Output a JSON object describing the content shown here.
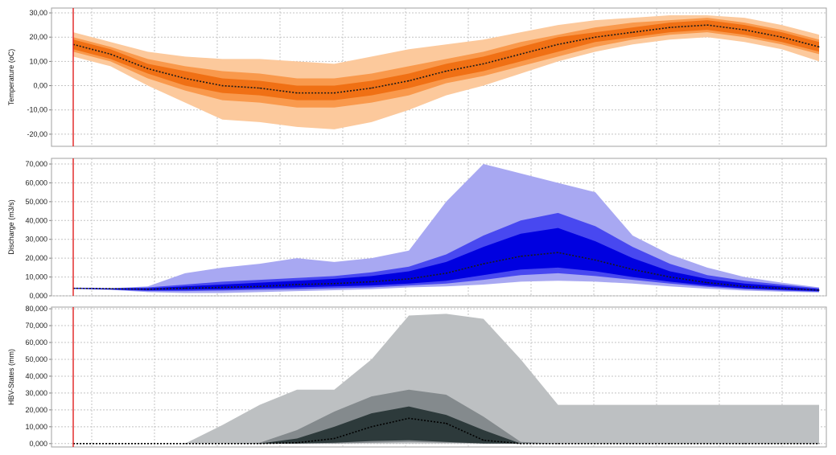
{
  "chart_data": [
    {
      "type": "area",
      "ylabel": "Temperature (oC)",
      "ylim": [
        -25,
        32
      ],
      "yticks": [
        30,
        20,
        10,
        0,
        -10,
        -20
      ],
      "ytick_labels": [
        "30,00",
        "20,00",
        "10,00",
        "0,00",
        "-10,00",
        "-20,00"
      ],
      "grid": true,
      "band_colors": {
        "outer": "#fcc99c",
        "middle": "#f9994c",
        "inner": "#f07014",
        "median": "#1a1a1a"
      },
      "x": [
        0,
        5,
        10,
        15,
        20,
        25,
        30,
        35,
        40,
        45,
        50,
        55,
        60,
        65,
        70,
        75,
        80,
        85,
        90,
        95,
        100
      ],
      "series": [
        {
          "role": "median",
          "values": [
            17,
            13,
            7,
            3,
            0,
            -1,
            -3,
            -3,
            -1,
            2,
            6,
            9,
            13,
            17,
            20,
            22,
            24,
            25,
            23,
            20,
            16
          ]
        },
        {
          "role": "inner_low",
          "values": [
            15,
            11,
            5,
            0,
            -3,
            -4,
            -6,
            -6,
            -4,
            -1,
            3,
            6,
            10,
            14,
            18,
            20,
            22,
            23,
            21,
            18,
            14
          ]
        },
        {
          "role": "inner_high",
          "values": [
            19,
            15,
            9,
            6,
            3,
            2,
            0,
            0,
            2,
            5,
            9,
            12,
            16,
            20,
            22,
            24,
            26,
            27,
            25,
            22,
            18
          ]
        },
        {
          "role": "middle_low",
          "values": [
            14,
            10,
            3,
            -2,
            -6,
            -7,
            -9,
            -9,
            -7,
            -4,
            1,
            4,
            8,
            12,
            16,
            19,
            21,
            22,
            20,
            17,
            13
          ]
        },
        {
          "role": "middle_high",
          "values": [
            20,
            16,
            11,
            8,
            6,
            5,
            3,
            3,
            5,
            8,
            11,
            14,
            18,
            21,
            24,
            26,
            27,
            28,
            26,
            23,
            19
          ]
        },
        {
          "role": "outer_low",
          "values": [
            12,
            8,
            0,
            -7,
            -14,
            -15,
            -17,
            -18,
            -15,
            -10,
            -4,
            0,
            5,
            10,
            14,
            17,
            19,
            20,
            18,
            15,
            10
          ]
        },
        {
          "role": "outer_high",
          "values": [
            22,
            18,
            14,
            12,
            11,
            11,
            10,
            9,
            12,
            15,
            17,
            19,
            22,
            25,
            27,
            28,
            29,
            29,
            28,
            25,
            21
          ]
        }
      ]
    },
    {
      "type": "area",
      "ylabel": "Discharge (m3/s)",
      "ylim": [
        0,
        73000
      ],
      "yticks": [
        70000,
        60000,
        50000,
        40000,
        30000,
        20000,
        10000,
        0
      ],
      "ytick_labels": [
        "70,000",
        "60,000",
        "50,000",
        "40,000",
        "30,000",
        "20,000",
        "10,000",
        "0,000"
      ],
      "grid": true,
      "band_colors": {
        "outer": "#a8a8f2",
        "middle": "#4848f0",
        "inner": "#0000e0",
        "median": "#1a1a1a"
      },
      "x": [
        0,
        5,
        10,
        15,
        20,
        25,
        30,
        35,
        40,
        45,
        50,
        55,
        60,
        65,
        70,
        75,
        80,
        85,
        90,
        95,
        100
      ],
      "series": [
        {
          "role": "median",
          "values": [
            4000,
            3800,
            3500,
            4000,
            4500,
            5000,
            6000,
            6500,
            7500,
            9000,
            12000,
            17000,
            21000,
            23000,
            19000,
            14000,
            10000,
            7000,
            5000,
            4000,
            3000
          ]
        },
        {
          "role": "inner_low",
          "values": [
            3800,
            3400,
            3000,
            3200,
            3500,
            4000,
            4500,
            5000,
            5500,
            6500,
            8000,
            11000,
            14000,
            15000,
            13000,
            10000,
            7500,
            5500,
            4000,
            3200,
            2500
          ]
        },
        {
          "role": "inner_high",
          "values": [
            4200,
            4000,
            4000,
            5000,
            6000,
            7000,
            8000,
            9000,
            10500,
            13000,
            18000,
            26000,
            33000,
            36000,
            29000,
            20000,
            13000,
            9000,
            6500,
            5000,
            3500
          ]
        },
        {
          "role": "middle_low",
          "values": [
            3800,
            3300,
            2500,
            2500,
            2800,
            3200,
            3500,
            4000,
            4500,
            5500,
            6500,
            8500,
            11000,
            12000,
            10500,
            8500,
            6500,
            4800,
            3500,
            2800,
            2200
          ]
        },
        {
          "role": "middle_high",
          "values": [
            4200,
            4000,
            4500,
            6000,
            7500,
            8500,
            9500,
            10500,
            12500,
            15500,
            22000,
            32000,
            40000,
            44000,
            37000,
            26000,
            17000,
            11000,
            8000,
            6000,
            4000
          ]
        },
        {
          "role": "outer_low",
          "values": [
            3800,
            3200,
            2000,
            1500,
            1500,
            2000,
            2500,
            3000,
            3500,
            4500,
            5000,
            6000,
            7500,
            8000,
            7500,
            6500,
            5000,
            3800,
            2800,
            2200,
            1800
          ]
        },
        {
          "role": "outer_high",
          "values": [
            4200,
            4000,
            5000,
            12000,
            15000,
            17000,
            20000,
            18000,
            20000,
            24000,
            50000,
            70000,
            65000,
            60000,
            55000,
            32000,
            22000,
            15000,
            10000,
            7000,
            4500
          ]
        }
      ]
    },
    {
      "type": "area",
      "ylabel": "HBV-States (mm)",
      "ylim": [
        -2000,
        81000
      ],
      "yticks": [
        80000,
        70000,
        60000,
        50000,
        40000,
        30000,
        20000,
        10000,
        0
      ],
      "ytick_labels": [
        "80,000",
        "70,000",
        "60,000",
        "50,000",
        "40,000",
        "30,000",
        "20,000",
        "10,000",
        "0,000"
      ],
      "grid": true,
      "band_colors": {
        "outer": "#bdc0c2",
        "middle": "#848a8d",
        "inner": "#2d3a3b",
        "median": "#000000"
      },
      "x": [
        0,
        5,
        10,
        15,
        20,
        25,
        30,
        35,
        40,
        45,
        50,
        55,
        60,
        65,
        70,
        75,
        80,
        85,
        90,
        95,
        100
      ],
      "series": [
        {
          "role": "median",
          "values": [
            0,
            0,
            0,
            0,
            0,
            0,
            500,
            3000,
            10000,
            15000,
            12000,
            2000,
            0,
            0,
            0,
            0,
            0,
            0,
            0,
            0,
            0
          ]
        },
        {
          "role": "inner_low",
          "values": [
            0,
            0,
            0,
            0,
            0,
            0,
            0,
            500,
            1500,
            2000,
            1000,
            0,
            0,
            0,
            0,
            0,
            0,
            0,
            0,
            0,
            0
          ]
        },
        {
          "role": "inner_high",
          "values": [
            0,
            0,
            0,
            0,
            0,
            0,
            3000,
            10000,
            18000,
            22000,
            17000,
            8000,
            0,
            0,
            0,
            0,
            0,
            0,
            0,
            0,
            0
          ]
        },
        {
          "role": "middle_low",
          "values": [
            0,
            0,
            0,
            0,
            0,
            0,
            0,
            0,
            500,
            1000,
            500,
            0,
            0,
            0,
            0,
            0,
            0,
            0,
            0,
            0,
            0
          ]
        },
        {
          "role": "middle_high",
          "values": [
            0,
            0,
            0,
            0,
            0,
            500,
            8000,
            19000,
            28000,
            32000,
            29000,
            16000,
            1000,
            0,
            0,
            0,
            0,
            0,
            0,
            0,
            0
          ]
        },
        {
          "role": "outer_low",
          "values": [
            0,
            0,
            0,
            0,
            0,
            0,
            0,
            0,
            0,
            0,
            0,
            0,
            0,
            0,
            0,
            0,
            0,
            0,
            0,
            0,
            0
          ]
        },
        {
          "role": "outer_high",
          "values": [
            0,
            0,
            0,
            0,
            11000,
            23000,
            32000,
            32000,
            50000,
            76000,
            77000,
            74000,
            50000,
            23000,
            23000,
            23000,
            23000,
            23000,
            23000,
            23000,
            23000
          ]
        }
      ]
    }
  ]
}
